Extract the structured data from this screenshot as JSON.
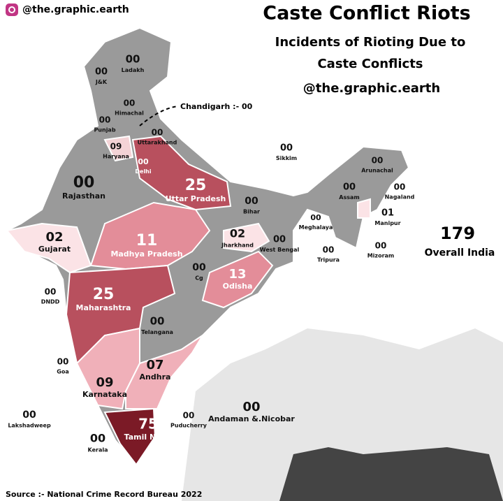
{
  "header": {
    "handle": "@the.graphic.earth",
    "title": "Caste Conflict Riots",
    "subtitle": [
      "Incidents of Rioting Due to",
      "Caste Conflicts"
    ],
    "handle_repeat": "@the.graphic.earth"
  },
  "regions": [
    {
      "name": "Ladakh",
      "value": "00"
    },
    {
      "name": "J&K",
      "value": "00"
    },
    {
      "name": "Himachal",
      "value": "00"
    },
    {
      "name": "Punjab",
      "value": "00"
    },
    {
      "name": "Uttarakhand",
      "value": "00"
    },
    {
      "name": "Haryana",
      "value": "09"
    },
    {
      "name": "Delhi",
      "value": "00"
    },
    {
      "name": "Rajasthan",
      "value": "00"
    },
    {
      "name": "Uttar Pradesh",
      "value": "25"
    },
    {
      "name": "Bihar",
      "value": "00"
    },
    {
      "name": "Sikkim",
      "value": "00"
    },
    {
      "name": "Arunachal",
      "value": "00"
    },
    {
      "name": "Assam",
      "value": "00"
    },
    {
      "name": "Nagaland",
      "value": "00"
    },
    {
      "name": "Meghalaya",
      "value": "00"
    },
    {
      "name": "Manipur",
      "value": "01"
    },
    {
      "name": "Gujarat",
      "value": "02"
    },
    {
      "name": "Madhya Pradesh",
      "value": "11"
    },
    {
      "name": "Jharkhand",
      "value": "02"
    },
    {
      "name": "West Bengal",
      "value": "00"
    },
    {
      "name": "Tripura",
      "value": "00"
    },
    {
      "name": "Mizoram",
      "value": "00"
    },
    {
      "name": "Cg",
      "value": "00"
    },
    {
      "name": "Odisha",
      "value": "13"
    },
    {
      "name": "DNDD",
      "value": "00"
    },
    {
      "name": "Maharashtra",
      "value": "25"
    },
    {
      "name": "Telangana",
      "value": "00"
    },
    {
      "name": "Goa",
      "value": "00"
    },
    {
      "name": "Andhra",
      "value": "07"
    },
    {
      "name": "Karnataka",
      "value": "09"
    },
    {
      "name": "Lakshadweep",
      "value": "00"
    },
    {
      "name": "Tamil Nadu",
      "value": "75"
    },
    {
      "name": "Puducherry",
      "value": "00"
    },
    {
      "name": "Andaman &.Nicobar",
      "value": "00"
    },
    {
      "name": "Kerala",
      "value": "00"
    }
  ],
  "chandigarh_note": "Chandigarh :- 00",
  "total": {
    "value": "179",
    "label": "Overall India"
  },
  "source": "Source :- National Crime Record Bureau 2022"
}
